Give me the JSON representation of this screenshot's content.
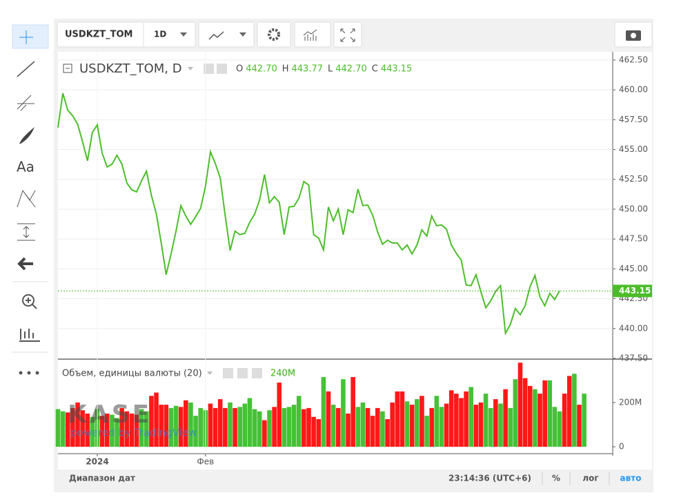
{
  "toolbar": {
    "symbol": "USDKZT_TOM",
    "interval": "1D"
  },
  "drawing_tools": {
    "text_tool": "Aa"
  },
  "watermark": {
    "logo": "KASE",
    "caption": "powered by TradingView"
  },
  "status_bar": {
    "range": "Диапазон дат",
    "clock": "23:14:36 (UTC+6)",
    "percent": "%",
    "log": "лог",
    "auto": "авто"
  },
  "chart_data": [
    {
      "type": "line",
      "title": "USDKZT_TOM, D",
      "color": "#4cbd2a",
      "grid": true,
      "ohlc": [
        {
          "key": "O",
          "value": 442.7,
          "label": "442.70"
        },
        {
          "key": "H",
          "value": 443.77,
          "label": "443.77"
        },
        {
          "key": "L",
          "value": 442.7,
          "label": "442.70"
        },
        {
          "key": "C",
          "value": 443.15,
          "label": "443.15"
        }
      ],
      "values": [
        456.83,
        459.72,
        458.28,
        457.82,
        457.12,
        455.68,
        454.06,
        456.43,
        457.06,
        454.69,
        453.54,
        453.77,
        454.52,
        453.77,
        452.21,
        451.63,
        451.45,
        452.38,
        453.19,
        451.16,
        449.6,
        447.17,
        444.51,
        446.25,
        448.16,
        450.3,
        449.43,
        448.73,
        449.37,
        450.07,
        451.92,
        454.81,
        453.82,
        452.61,
        449.49,
        446.54,
        448.16,
        447.87,
        447.98,
        448.91,
        449.6,
        450.76,
        452.9,
        450.53,
        451.05,
        450.59,
        447.87,
        450.18,
        450.24,
        450.93,
        452.32,
        452.03,
        447.87,
        447.58,
        446.59,
        450.18,
        449.02,
        450.01,
        447.87,
        449.95,
        449.72,
        451.68,
        450.3,
        450.35,
        449.49,
        448.1,
        447.06,
        447.4,
        447.17,
        447.17,
        446.59,
        447,
        446.25,
        447,
        448.27,
        447.75,
        449.43,
        448.62,
        448.68,
        448.33,
        447,
        446.31,
        445.73,
        443.65,
        443.59,
        444.51,
        443.07,
        441.74,
        442.32,
        443.12,
        443.59,
        439.6,
        440.35,
        441.68,
        441.16,
        441.91,
        443.53,
        444.45,
        442.66,
        441.91,
        442.95,
        442.43,
        443.15
      ],
      "xlim": [
        0,
        112.8
      ],
      "xticks": [
        {
          "value": 8,
          "label": "2024"
        },
        {
          "value": 30,
          "label": "Фев"
        }
      ],
      "ylim": [
        437.5,
        462.9
      ],
      "yticks": [
        {
          "value": 437.5,
          "label": "437.50"
        },
        {
          "value": 440,
          "label": "440.00"
        },
        {
          "value": 442.5,
          "label": "442.50"
        },
        {
          "value": 445,
          "label": "445.00"
        },
        {
          "value": 447.5,
          "label": "447.50"
        },
        {
          "value": 450,
          "label": "450.00"
        },
        {
          "value": 452.5,
          "label": "452.50"
        },
        {
          "value": 455,
          "label": "455.00"
        },
        {
          "value": 457.5,
          "label": "457.50"
        },
        {
          "value": 460,
          "label": "460.00"
        },
        {
          "value": 462.5,
          "label": "462.50"
        }
      ]
    },
    {
      "type": "bar",
      "title": "Объем, единицы валюты (20)",
      "value_label": "240M",
      "values": [
        170,
        160,
        155,
        175,
        200,
        165,
        150,
        135,
        170,
        140,
        150,
        145,
        130,
        175,
        160,
        150,
        145,
        170,
        160,
        230,
        245,
        190,
        190,
        175,
        185,
        180,
        210,
        200,
        140,
        175,
        165,
        195,
        175,
        215,
        175,
        200,
        175,
        180,
        195,
        220,
        170,
        160,
        120,
        165,
        180,
        290,
        175,
        180,
        190,
        230,
        170,
        175,
        135,
        125,
        315,
        250,
        190,
        175,
        305,
        150,
        315,
        180,
        200,
        175,
        140,
        175,
        160,
        125,
        200,
        250,
        250,
        205,
        190,
        215,
        230,
        140,
        175,
        230,
        180,
        195,
        255,
        240,
        220,
        250,
        270,
        190,
        200,
        240,
        175,
        215,
        195,
        260,
        175,
        305,
        380,
        310,
        275,
        260,
        240,
        300,
        300,
        180,
        160,
        240,
        320,
        330,
        190,
        240
      ],
      "colors": [
        "#3b2",
        "#3b2",
        "#f00",
        "#f00",
        "#f00",
        "#f00",
        "#f00",
        "#3b2",
        "#3b2",
        "#f00",
        "#f00",
        "#3b2",
        "#3b2",
        "#f00",
        "#f00",
        "#f00",
        "#f00",
        "#3b2",
        "#3b2",
        "#f00",
        "#f00",
        "#f00",
        "#f00",
        "#3b2",
        "#3b2",
        "#f00",
        "#f00",
        "#3b2",
        "#3b2",
        "#3b2",
        "#3b2",
        "#f00",
        "#f00",
        "#f00",
        "#f00",
        "#3b2",
        "#f00",
        "#3b2",
        "#3b2",
        "#3b2",
        "#3b2",
        "#3b2",
        "#f00",
        "#3b2",
        "#f00",
        "#f00",
        "#3b2",
        "#3b2",
        "#3b2",
        "#3b2",
        "#f00",
        "#f00",
        "#f00",
        "#f00",
        "#3b2",
        "#f00",
        "#3b2",
        "#f00",
        "#3b2",
        "#f00",
        "#f00",
        "#3b2",
        "#3b2",
        "#f00",
        "#f00",
        "#f00",
        "#3b2",
        "#f00",
        "#f00",
        "#f00",
        "#f00",
        "#3b2",
        "#f00",
        "#3b2",
        "#f00",
        "#3b2",
        "#f00",
        "#3b2",
        "#3b2",
        "#f00",
        "#f00",
        "#f00",
        "#f00",
        "#f00",
        "#3b2",
        "#f00",
        "#f00",
        "#3b2",
        "#3b2",
        "#f00",
        "#3b2",
        "#f00",
        "#3b2",
        "#3b2",
        "#f00",
        "#f00",
        "#f00",
        "#3b2",
        "#f00",
        "#f00",
        "#3b2",
        "#3b2",
        "#3b2",
        "#f00",
        "#f00",
        "#3b2",
        "#f00",
        "#3b2"
      ],
      "ylim": [
        0,
        390
      ],
      "yticks": [
        0,
        {
          "value": 200,
          "label": "200M"
        }
      ]
    }
  ]
}
